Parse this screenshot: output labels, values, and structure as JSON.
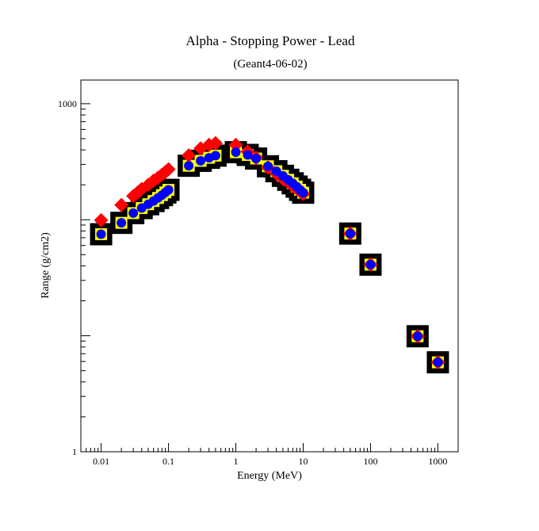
{
  "chart_data": {
    "type": "scatter",
    "title": "Alpha - Stopping Power - Lead",
    "subtitle": "(Geant4-06-02)",
    "xlabel": "Energy (MeV)",
    "ylabel": "Range (g/cm2)",
    "xscale": "log",
    "yscale": "log",
    "xlim": [
      0.005,
      2000
    ],
    "ylim": [
      1,
      1600
    ],
    "grid": false,
    "x_ticks": [
      {
        "value": 0.01,
        "label": "0.01"
      },
      {
        "value": 0.1,
        "label": "0.1"
      },
      {
        "value": 1,
        "label": "1"
      },
      {
        "value": 10,
        "label": "10"
      },
      {
        "value": 100,
        "label": "100"
      },
      {
        "value": 1000,
        "label": "1000"
      }
    ],
    "y_ticks": [
      {
        "value": 1,
        "label": "1"
      },
      {
        "value": 1000,
        "label": "1000"
      }
    ],
    "series": [
      {
        "marker": "square",
        "color": "#000000",
        "fill": "#ffff00",
        "x": [
          0.01,
          0.02,
          0.03,
          0.04,
          0.05,
          0.06,
          0.07,
          0.08,
          0.09,
          0.1,
          0.2,
          0.3,
          0.4,
          0.5,
          1,
          1.5,
          2,
          3,
          4,
          5,
          6,
          7,
          8,
          9,
          10,
          50,
          100,
          500,
          1000
        ],
        "y": [
          75,
          94,
          114,
          126,
          136,
          145,
          154,
          163,
          172,
          181,
          292,
          322,
          342,
          357,
          382,
          362,
          337,
          289,
          262,
          239,
          221,
          206,
          193,
          181,
          171,
          76,
          41,
          9.9,
          5.9
        ]
      },
      {
        "marker": "circle",
        "color": "#0000ff",
        "x": [
          0.01,
          0.02,
          0.03,
          0.04,
          0.05,
          0.06,
          0.07,
          0.08,
          0.09,
          0.1,
          0.2,
          0.3,
          0.4,
          0.5,
          1,
          1.5,
          2,
          3,
          4,
          5,
          6,
          7,
          8,
          9,
          10,
          50,
          100,
          500,
          1000
        ],
        "y": [
          75,
          94,
          114,
          126,
          136,
          145,
          154,
          163,
          172,
          181,
          292,
          322,
          342,
          357,
          382,
          362,
          337,
          289,
          262,
          239,
          221,
          206,
          193,
          181,
          171,
          76,
          41,
          9.9,
          5.9
        ]
      },
      {
        "marker": "diamond",
        "color": "#ff0000",
        "x": [
          0.01,
          0.02,
          0.03,
          0.035,
          0.04,
          0.05,
          0.06,
          0.07,
          0.08,
          0.09,
          0.1,
          0.2,
          0.3,
          0.4,
          0.5,
          1,
          1.5,
          2,
          3,
          4,
          5,
          6,
          7,
          8,
          9,
          10,
          50,
          100,
          500,
          1000
        ],
        "y": [
          99,
          134,
          160,
          172,
          184,
          200,
          217,
          230,
          244,
          258,
          272,
          359,
          412,
          442,
          457,
          442,
          387,
          342,
          282,
          250,
          225,
          210,
          196,
          185,
          175,
          167,
          76,
          41,
          9.9,
          5.9
        ]
      }
    ]
  }
}
